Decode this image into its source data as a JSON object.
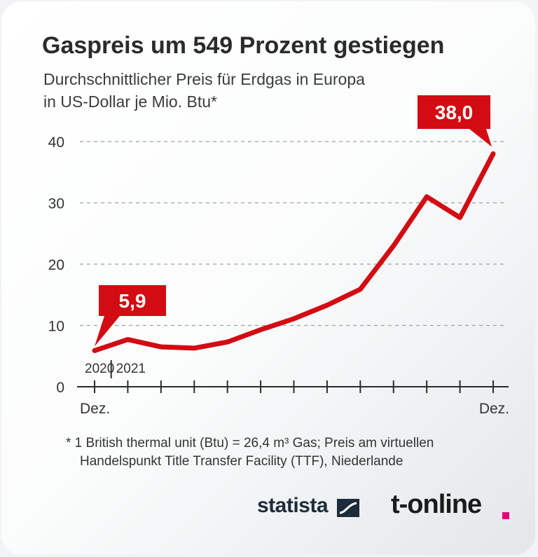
{
  "header": {
    "title": "Gaspreis um 549 Prozent gestiegen",
    "subtitle_line1": "Durchschnittlicher Preis für Erdgas in Europa",
    "subtitle_line2": "in US-Dollar je Mio. Btu*"
  },
  "chart_data": {
    "type": "line",
    "title": "Gaspreis um 549 Prozent gestiegen",
    "ylabel": "in US-Dollar je Mio. Btu*",
    "ylim": [
      0,
      40
    ],
    "yticks": [
      0,
      10,
      20,
      30,
      40
    ],
    "grid": true,
    "x_month_count": 13,
    "x_labels": {
      "start_month": "Dez.",
      "end_month": "Dez.",
      "year_start": "2020",
      "year_next": "2021"
    },
    "values": [
      5.9,
      7.7,
      6.5,
      6.3,
      7.3,
      9.3,
      11.1,
      13.3,
      15.9,
      23.0,
      31.0,
      27.6,
      38.0
    ],
    "line_color": "#d30b12",
    "callouts": [
      {
        "label": "5,9",
        "index": 0
      },
      {
        "label": "38,0",
        "index": 12
      }
    ]
  },
  "footnote": {
    "line1": "* 1 British thermal unit (Btu) = 26,4 m³ Gas; Preis am virtuellen",
    "line2": "Handelspunkt Title Transfer Facility (TTF), Niederlande"
  },
  "branding": {
    "statista": "statista",
    "tonline": "t-online",
    "tonline_dot_color": "#e2007a"
  }
}
